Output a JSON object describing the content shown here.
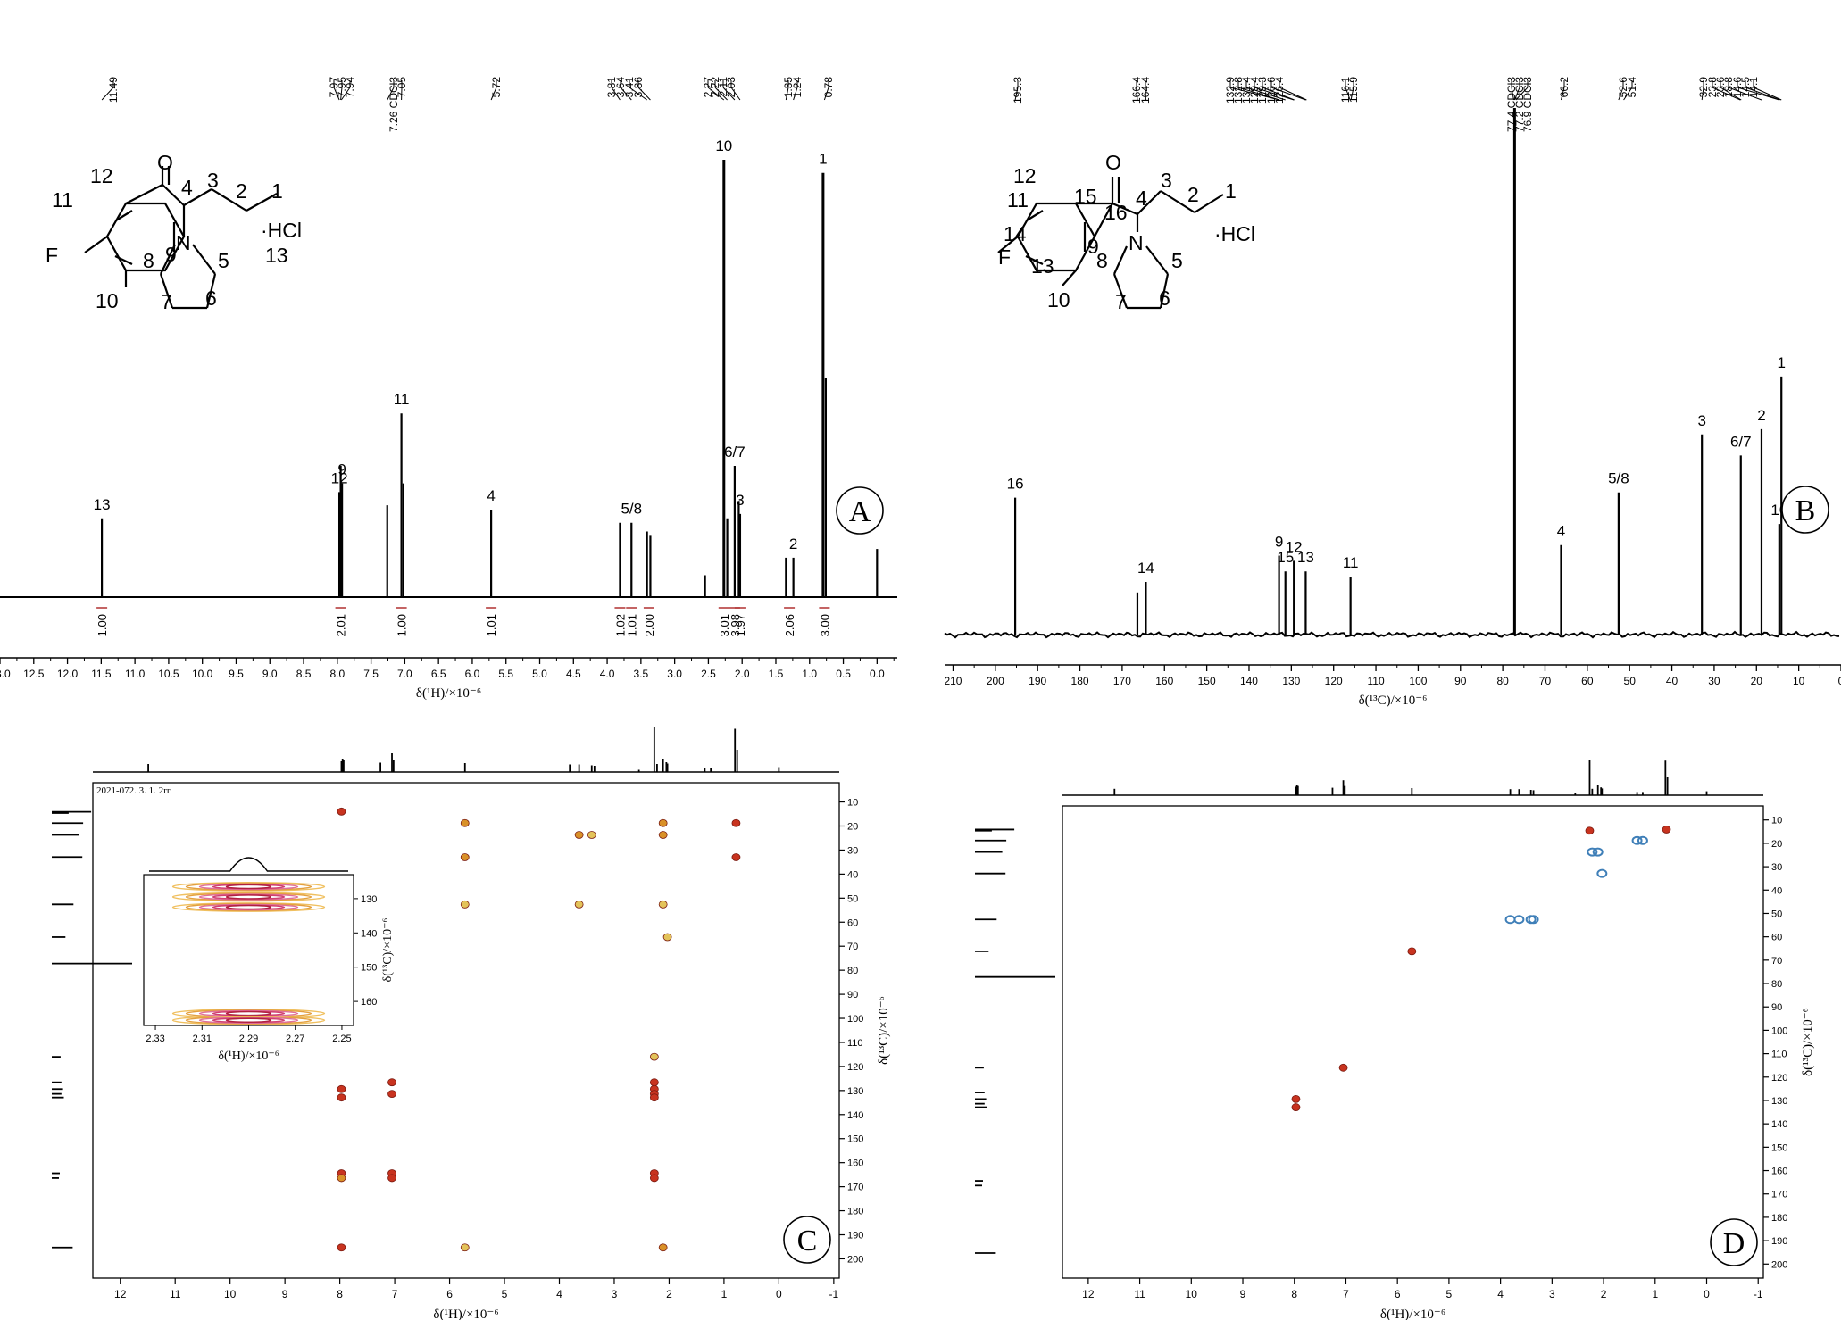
{
  "panels": [
    {
      "id": "A",
      "type": "line",
      "spectrum": "1H NMR",
      "xlabel": "δ(¹H)/×10⁻⁶",
      "xlim": [
        13.0,
        -0.3
      ],
      "x_ticks": [
        "13.0",
        "12.5",
        "12.0",
        "11.5",
        "11.0",
        "10.5",
        "10.0",
        "9.5",
        "9.0",
        "8.5",
        "8.0",
        "7.5",
        "7.0",
        "6.5",
        "6.0",
        "5.5",
        "5.0",
        "4.5",
        "4.0",
        "3.5",
        "3.0",
        "2.5",
        "2.0",
        "1.5",
        "1.0",
        "0.5",
        "0.0"
      ],
      "peak_list": [
        "11.49",
        "7.97",
        "7.95",
        "7.94",
        "7.26 CDCl3",
        "7.05",
        "5.72",
        "3.81",
        "3.64",
        "3.41",
        "3.36",
        "2.27",
        "2.22",
        "2.11",
        "2.03",
        "1.35",
        "1.24",
        "0.78"
      ],
      "peaks": [
        {
          "ppm": 11.49,
          "height": 0.18,
          "label": "13"
        },
        {
          "ppm": 7.97,
          "height": 0.24,
          "label": "12"
        },
        {
          "ppm": 7.95,
          "height": 0.3,
          "label": ""
        },
        {
          "ppm": 7.93,
          "height": 0.26,
          "label": "9"
        },
        {
          "ppm": 7.26,
          "height": 0.21,
          "label": ""
        },
        {
          "ppm": 7.05,
          "height": 0.42,
          "label": "11"
        },
        {
          "ppm": 7.02,
          "height": 0.26,
          "label": ""
        },
        {
          "ppm": 5.72,
          "height": 0.2,
          "label": "4"
        },
        {
          "ppm": 3.81,
          "height": 0.17,
          "label": ""
        },
        {
          "ppm": 3.64,
          "height": 0.17,
          "label": "5/8"
        },
        {
          "ppm": 3.41,
          "height": 0.15,
          "label": ""
        },
        {
          "ppm": 3.36,
          "height": 0.14,
          "label": ""
        },
        {
          "ppm": 2.55,
          "height": 0.05,
          "label": ""
        },
        {
          "ppm": 2.27,
          "height": 1.0,
          "label": "10"
        },
        {
          "ppm": 2.22,
          "height": 0.18,
          "label": ""
        },
        {
          "ppm": 2.11,
          "height": 0.3,
          "label": "6/7"
        },
        {
          "ppm": 2.05,
          "height": 0.22,
          "label": ""
        },
        {
          "ppm": 2.03,
          "height": 0.19,
          "label": "3"
        },
        {
          "ppm": 1.35,
          "height": 0.09,
          "label": ""
        },
        {
          "ppm": 1.24,
          "height": 0.09,
          "label": "2"
        },
        {
          "ppm": 0.8,
          "height": 0.97,
          "label": "1"
        },
        {
          "ppm": 0.76,
          "height": 0.5,
          "label": ""
        },
        {
          "ppm": 0.0,
          "height": 0.11,
          "label": ""
        }
      ],
      "integrals": [
        {
          "ppm": 11.49,
          "value": "1.00"
        },
        {
          "ppm": 7.95,
          "value": "2.01"
        },
        {
          "ppm": 7.05,
          "value": "1.00"
        },
        {
          "ppm": 5.72,
          "value": "1.01"
        },
        {
          "ppm": 3.81,
          "value": "1.02"
        },
        {
          "ppm": 3.64,
          "value": "1.01"
        },
        {
          "ppm": 3.38,
          "value": "2.00"
        },
        {
          "ppm": 2.27,
          "value": "3.01"
        },
        {
          "ppm": 2.11,
          "value": "3.98"
        },
        {
          "ppm": 2.03,
          "value": "1.97"
        },
        {
          "ppm": 1.3,
          "value": "2.06"
        },
        {
          "ppm": 0.78,
          "value": "3.00"
        }
      ],
      "badge": "A",
      "structure": {
        "atoms": [
          "1",
          "2",
          "3",
          "4",
          "5",
          "6",
          "7",
          "8",
          "9",
          "10",
          "11",
          "12",
          "13",
          "O",
          "N",
          "F"
        ],
        "salt": "·HCl"
      }
    },
    {
      "id": "B",
      "type": "line",
      "spectrum": "13C NMR",
      "xlabel": "δ(¹³C)/×10⁻⁶",
      "xlim": [
        212,
        0
      ],
      "x_ticks": [
        "210",
        "200",
        "190",
        "180",
        "170",
        "160",
        "150",
        "140",
        "130",
        "120",
        "110",
        "100",
        "90",
        "80",
        "70",
        "60",
        "50",
        "40",
        "30",
        "20",
        "10",
        "0"
      ],
      "peak_list": [
        "195.3",
        "166.4",
        "164.4",
        "132.9",
        "132.8",
        "131.4",
        "129.4",
        "129.3",
        "126.6",
        "126.4",
        "116.1",
        "115.9",
        "77.4 CDCl3",
        "77.2 CDCl3",
        "76.9 CDCl3",
        "66.2",
        "52.6",
        "51.4",
        "32.9",
        "23.8",
        "23.6",
        "18.8",
        "14.6",
        "14.5",
        "14.1"
      ],
      "peaks": [
        {
          "ppm": 195.3,
          "height": 0.26,
          "label": "16"
        },
        {
          "ppm": 166.4,
          "height": 0.08,
          "label": ""
        },
        {
          "ppm": 164.4,
          "height": 0.1,
          "label": "14"
        },
        {
          "ppm": 132.9,
          "height": 0.15,
          "label": "9"
        },
        {
          "ppm": 131.4,
          "height": 0.12,
          "label": "15"
        },
        {
          "ppm": 129.4,
          "height": 0.14,
          "label": "12"
        },
        {
          "ppm": 126.6,
          "height": 0.12,
          "label": "13"
        },
        {
          "ppm": 116.0,
          "height": 0.11,
          "label": "11"
        },
        {
          "ppm": 77.2,
          "height": 1.0,
          "label": ""
        },
        {
          "ppm": 66.2,
          "height": 0.17,
          "label": "4"
        },
        {
          "ppm": 52.6,
          "height": 0.27,
          "label": "5/8"
        },
        {
          "ppm": 32.9,
          "height": 0.38,
          "label": "3"
        },
        {
          "ppm": 23.7,
          "height": 0.34,
          "label": "6/7"
        },
        {
          "ppm": 18.8,
          "height": 0.39,
          "label": "2"
        },
        {
          "ppm": 14.6,
          "height": 0.21,
          "label": "10"
        },
        {
          "ppm": 14.1,
          "height": 0.49,
          "label": "1"
        }
      ],
      "badge": "B",
      "structure": {
        "atoms": [
          "1",
          "2",
          "3",
          "4",
          "5",
          "6",
          "7",
          "8",
          "9",
          "10",
          "11",
          "12",
          "13",
          "14",
          "15",
          "16",
          "O",
          "N",
          "F"
        ],
        "salt": "·HCl"
      }
    },
    {
      "id": "C",
      "type": "heatmap",
      "spectrum": "HMBC",
      "title_text": "2021-072. 3. 1. 2rr",
      "xlabel": "δ(¹H)/×10⁻⁶",
      "ylabel": "δ(¹³C)/×10⁻⁶",
      "xlim": [
        12.5,
        -1.1
      ],
      "ylim": [
        2,
        208
      ],
      "x_ticks": [
        "12",
        "11",
        "10",
        "9",
        "8",
        "7",
        "6",
        "5",
        "4",
        "3",
        "2",
        "1",
        "0",
        "-1"
      ],
      "y_ticks": [
        "10",
        "20",
        "30",
        "40",
        "50",
        "60",
        "70",
        "80",
        "90",
        "100",
        "110",
        "120",
        "130",
        "140",
        "150",
        "160",
        "170",
        "180",
        "190",
        "200"
      ],
      "cross_peaks": [
        {
          "h": 7.97,
          "c": 14,
          "tone": "red"
        },
        {
          "h": 5.72,
          "c": 18.8,
          "tone": "orange"
        },
        {
          "h": 5.72,
          "c": 33,
          "tone": "orange"
        },
        {
          "h": 3.64,
          "c": 23.7,
          "tone": "orange"
        },
        {
          "h": 3.41,
          "c": 23.7,
          "tone": "yellow"
        },
        {
          "h": 2.11,
          "c": 18.8,
          "tone": "orange"
        },
        {
          "h": 2.11,
          "c": 23.7,
          "tone": "orange"
        },
        {
          "h": 0.78,
          "c": 18.8,
          "tone": "red"
        },
        {
          "h": 0.78,
          "c": 33,
          "tone": "red"
        },
        {
          "h": 5.72,
          "c": 52.6,
          "tone": "yellow"
        },
        {
          "h": 3.64,
          "c": 52.6,
          "tone": "yellow"
        },
        {
          "h": 2.11,
          "c": 52.6,
          "tone": "yellow"
        },
        {
          "h": 2.03,
          "c": 66.2,
          "tone": "yellow"
        },
        {
          "h": 2.27,
          "c": 116,
          "tone": "yellow"
        },
        {
          "h": 7.97,
          "c": 129.4,
          "tone": "red"
        },
        {
          "h": 7.97,
          "c": 132.9,
          "tone": "red"
        },
        {
          "h": 7.05,
          "c": 126.6,
          "tone": "red"
        },
        {
          "h": 7.05,
          "c": 131.4,
          "tone": "red"
        },
        {
          "h": 2.27,
          "c": 126.6,
          "tone": "red"
        },
        {
          "h": 2.27,
          "c": 129.4,
          "tone": "red"
        },
        {
          "h": 2.27,
          "c": 131.4,
          "tone": "red"
        },
        {
          "h": 2.27,
          "c": 132.9,
          "tone": "red"
        },
        {
          "h": 7.97,
          "c": 164.4,
          "tone": "red"
        },
        {
          "h": 7.97,
          "c": 166.4,
          "tone": "orange"
        },
        {
          "h": 7.05,
          "c": 164.4,
          "tone": "red"
        },
        {
          "h": 7.05,
          "c": 166.4,
          "tone": "red"
        },
        {
          "h": 2.27,
          "c": 164.4,
          "tone": "red"
        },
        {
          "h": 2.27,
          "c": 166.4,
          "tone": "red"
        },
        {
          "h": 7.97,
          "c": 195.3,
          "tone": "red"
        },
        {
          "h": 5.72,
          "c": 195.3,
          "tone": "yellow"
        },
        {
          "h": 2.11,
          "c": 195.3,
          "tone": "orange"
        }
      ],
      "inset": {
        "xlabel": "δ(¹H)/×10⁻⁶",
        "ylabel": "δ(¹³C)/×10⁻⁶",
        "xlim": [
          2.335,
          2.245
        ],
        "ylim": [
          123,
          167
        ],
        "x_ticks": [
          "2.33",
          "2.31",
          "2.29",
          "2.27",
          "2.25"
        ],
        "y_ticks": [
          "130",
          "140",
          "150",
          "160"
        ],
        "cross_peaks": [
          {
            "h": 2.29,
            "c": 126.5
          },
          {
            "h": 2.29,
            "c": 129.5
          },
          {
            "h": 2.29,
            "c": 132.5
          },
          {
            "h": 2.29,
            "c": 163.5
          },
          {
            "h": 2.29,
            "c": 165.5
          }
        ]
      },
      "badge": "C"
    },
    {
      "id": "D",
      "type": "heatmap",
      "spectrum": "HSQC",
      "xlabel": "δ(¹H)/×10⁻⁶",
      "ylabel": "δ(¹³C)/×10⁻⁶",
      "xlim": [
        12.5,
        -1.1
      ],
      "ylim": [
        4,
        206
      ],
      "x_ticks": [
        "12",
        "11",
        "10",
        "9",
        "8",
        "7",
        "6",
        "5",
        "4",
        "3",
        "2",
        "1",
        "0",
        "-1"
      ],
      "y_ticks": [
        "10",
        "20",
        "30",
        "40",
        "50",
        "60",
        "70",
        "80",
        "90",
        "100",
        "110",
        "120",
        "130",
        "140",
        "150",
        "160",
        "170",
        "180",
        "190",
        "200"
      ],
      "cross_peaks": [
        {
          "h": 2.27,
          "c": 14.6,
          "tone": "red"
        },
        {
          "h": 0.78,
          "c": 14.1,
          "tone": "red"
        },
        {
          "h": 1.35,
          "c": 18.8,
          "tone": "blue"
        },
        {
          "h": 1.24,
          "c": 18.8,
          "tone": "blue"
        },
        {
          "h": 2.22,
          "c": 23.7,
          "tone": "blue"
        },
        {
          "h": 2.11,
          "c": 23.7,
          "tone": "blue"
        },
        {
          "h": 2.03,
          "c": 32.9,
          "tone": "blue"
        },
        {
          "h": 3.81,
          "c": 52.6,
          "tone": "blue"
        },
        {
          "h": 3.64,
          "c": 52.6,
          "tone": "blue"
        },
        {
          "h": 3.41,
          "c": 52.6,
          "tone": "blue"
        },
        {
          "h": 3.36,
          "c": 52.6,
          "tone": "blue"
        },
        {
          "h": 5.72,
          "c": 66.2,
          "tone": "red"
        },
        {
          "h": 7.05,
          "c": 116,
          "tone": "red"
        },
        {
          "h": 7.97,
          "c": 129.4,
          "tone": "red"
        },
        {
          "h": 7.97,
          "c": 132.9,
          "tone": "red"
        }
      ],
      "badge": "D"
    }
  ]
}
